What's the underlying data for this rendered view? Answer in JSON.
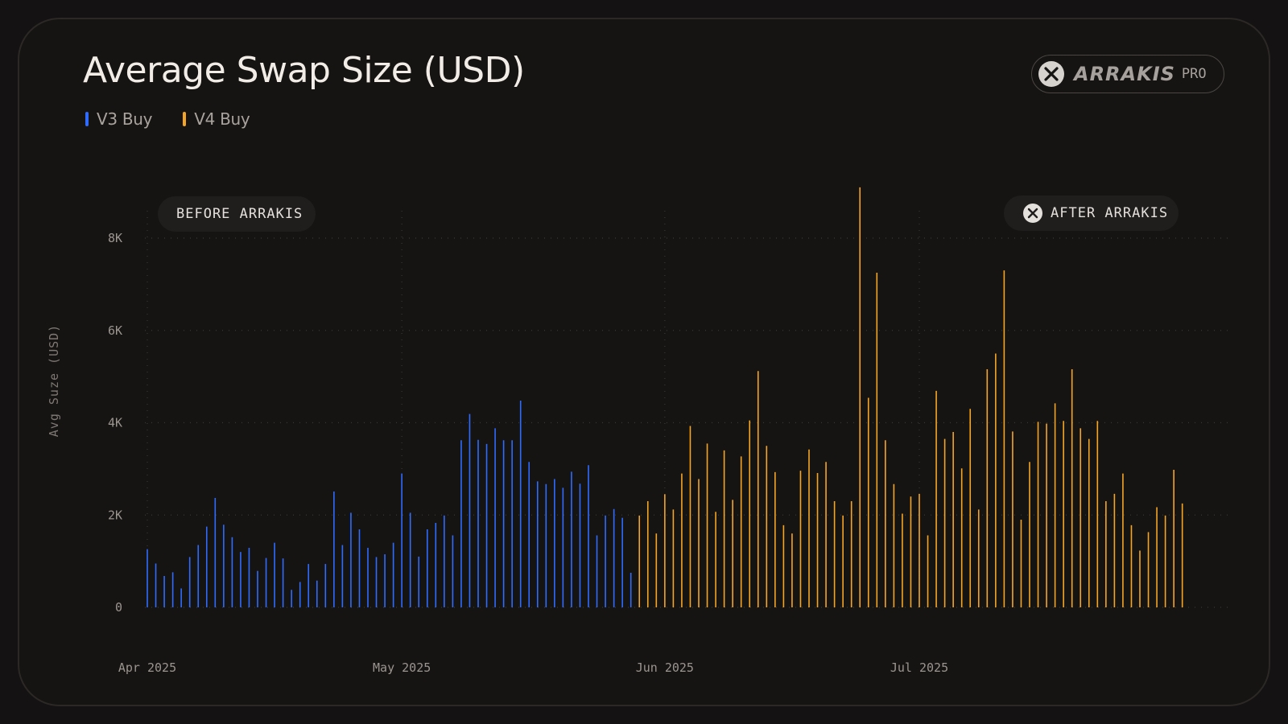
{
  "title": "Average Swap Size (USD)",
  "brand": {
    "wordmark": "ARRAKIS",
    "suffix": "PRO",
    "icon": "arrakis-logo-icon"
  },
  "legend": [
    {
      "label": "V3 Buy",
      "color": "#2f6bff"
    },
    {
      "label": "V4 Buy",
      "color": "#f5a524"
    }
  ],
  "annotations": {
    "before": "BEFORE ARRAKIS",
    "after": "AFTER ARRAKIS"
  },
  "colors": {
    "background": "#141212",
    "card": "#161413",
    "v3": "#2f6bff",
    "v4": "#f5a524",
    "grid": "#3a3633"
  },
  "chart_data": {
    "type": "bar",
    "title": "Average Swap Size (USD)",
    "xlabel": "",
    "ylabel": "Avg Suze (USD)",
    "ylim": [
      0,
      8800
    ],
    "yticks": [
      0,
      2000,
      4000,
      6000,
      8000
    ],
    "ytick_labels": [
      "0",
      "2K",
      "4K",
      "6K",
      "8K"
    ],
    "xticks": [
      "2025-04-01",
      "2025-05-01",
      "2025-06-01",
      "2025-07-01"
    ],
    "xtick_labels": [
      "Apr 2025",
      "May 2025",
      "Jun 2025",
      "Jul 2025"
    ],
    "grid": true,
    "legend_position": "top-left",
    "series": [
      {
        "name": "V3 Buy",
        "color": "#2f6bff",
        "points": [
          [
            "2025-04-01",
            1260
          ],
          [
            "2025-04-02",
            950
          ],
          [
            "2025-04-03",
            680
          ],
          [
            "2025-04-04",
            760
          ],
          [
            "2025-04-05",
            410
          ],
          [
            "2025-04-06",
            1090
          ],
          [
            "2025-04-07",
            1350
          ],
          [
            "2025-04-08",
            1750
          ],
          [
            "2025-04-09",
            2370
          ],
          [
            "2025-04-10",
            1790
          ],
          [
            "2025-04-11",
            1520
          ],
          [
            "2025-04-12",
            1200
          ],
          [
            "2025-04-13",
            1290
          ],
          [
            "2025-04-14",
            790
          ],
          [
            "2025-04-15",
            1070
          ],
          [
            "2025-04-16",
            1400
          ],
          [
            "2025-04-17",
            1060
          ],
          [
            "2025-04-18",
            380
          ],
          [
            "2025-04-19",
            550
          ],
          [
            "2025-04-20",
            940
          ],
          [
            "2025-04-21",
            580
          ],
          [
            "2025-04-22",
            940
          ],
          [
            "2025-04-23",
            2510
          ],
          [
            "2025-04-24",
            1350
          ],
          [
            "2025-04-25",
            2050
          ],
          [
            "2025-04-26",
            1690
          ],
          [
            "2025-04-27",
            1290
          ],
          [
            "2025-04-28",
            1090
          ],
          [
            "2025-04-29",
            1150
          ],
          [
            "2025-04-30",
            1400
          ],
          [
            "2025-05-01",
            2900
          ],
          [
            "2025-05-02",
            2050
          ],
          [
            "2025-05-03",
            1100
          ],
          [
            "2025-05-04",
            1690
          ],
          [
            "2025-05-05",
            1830
          ],
          [
            "2025-05-06",
            1990
          ],
          [
            "2025-05-07",
            1560
          ],
          [
            "2025-05-08",
            3620
          ],
          [
            "2025-05-09",
            4190
          ],
          [
            "2025-05-10",
            3630
          ],
          [
            "2025-05-11",
            3540
          ],
          [
            "2025-05-12",
            3880
          ],
          [
            "2025-05-13",
            3620
          ],
          [
            "2025-05-14",
            3620
          ],
          [
            "2025-05-15",
            4480
          ],
          [
            "2025-05-16",
            3150
          ],
          [
            "2025-05-17",
            2730
          ],
          [
            "2025-05-18",
            2670
          ],
          [
            "2025-05-19",
            2780
          ],
          [
            "2025-05-20",
            2590
          ],
          [
            "2025-05-21",
            2940
          ],
          [
            "2025-05-22",
            2680
          ],
          [
            "2025-05-23",
            3080
          ],
          [
            "2025-05-24",
            1560
          ],
          [
            "2025-05-25",
            1990
          ],
          [
            "2025-05-26",
            2130
          ],
          [
            "2025-05-27",
            1940
          ],
          [
            "2025-05-28",
            750
          ]
        ]
      },
      {
        "name": "V4 Buy",
        "color": "#f5a524",
        "points": [
          [
            "2025-05-29",
            1990
          ],
          [
            "2025-05-30",
            2300
          ],
          [
            "2025-05-31",
            1600
          ],
          [
            "2025-06-01",
            2450
          ],
          [
            "2025-06-02",
            2120
          ],
          [
            "2025-06-03",
            2900
          ],
          [
            "2025-06-04",
            3930
          ],
          [
            "2025-06-05",
            2780
          ],
          [
            "2025-06-06",
            3550
          ],
          [
            "2025-06-07",
            2070
          ],
          [
            "2025-06-08",
            3400
          ],
          [
            "2025-06-09",
            2330
          ],
          [
            "2025-06-10",
            3270
          ],
          [
            "2025-06-11",
            4050
          ],
          [
            "2025-06-12",
            5120
          ],
          [
            "2025-06-13",
            3500
          ],
          [
            "2025-06-14",
            2930
          ],
          [
            "2025-06-15",
            1780
          ],
          [
            "2025-06-16",
            1600
          ],
          [
            "2025-06-17",
            2960
          ],
          [
            "2025-06-18",
            3420
          ],
          [
            "2025-06-19",
            2910
          ],
          [
            "2025-06-20",
            3150
          ],
          [
            "2025-06-21",
            2300
          ],
          [
            "2025-06-22",
            1990
          ],
          [
            "2025-06-23",
            2300
          ],
          [
            "2025-06-24",
            9100
          ],
          [
            "2025-06-25",
            4540
          ],
          [
            "2025-06-26",
            7250
          ],
          [
            "2025-06-27",
            3620
          ],
          [
            "2025-06-28",
            2670
          ],
          [
            "2025-06-29",
            2030
          ],
          [
            "2025-06-30",
            2400
          ],
          [
            "2025-07-01",
            2460
          ],
          [
            "2025-07-02",
            1560
          ],
          [
            "2025-07-03",
            4690
          ],
          [
            "2025-07-04",
            3650
          ],
          [
            "2025-07-05",
            3800
          ],
          [
            "2025-07-06",
            3010
          ],
          [
            "2025-07-07",
            4300
          ],
          [
            "2025-07-08",
            2120
          ],
          [
            "2025-07-09",
            5160
          ],
          [
            "2025-07-10",
            5500
          ],
          [
            "2025-07-11",
            7300
          ],
          [
            "2025-07-12",
            3810
          ],
          [
            "2025-07-13",
            1900
          ],
          [
            "2025-07-14",
            3150
          ],
          [
            "2025-07-15",
            4020
          ],
          [
            "2025-07-16",
            3980
          ],
          [
            "2025-07-17",
            4420
          ],
          [
            "2025-07-18",
            4040
          ],
          [
            "2025-07-19",
            5160
          ],
          [
            "2025-07-20",
            3880
          ],
          [
            "2025-07-21",
            3650
          ],
          [
            "2025-07-22",
            4040
          ],
          [
            "2025-07-23",
            2300
          ],
          [
            "2025-07-24",
            2460
          ],
          [
            "2025-07-25",
            2900
          ],
          [
            "2025-07-26",
            1780
          ],
          [
            "2025-07-27",
            1230
          ],
          [
            "2025-07-28",
            1630
          ],
          [
            "2025-07-29",
            2170
          ],
          [
            "2025-07-30",
            1990
          ],
          [
            "2025-07-31",
            2980
          ],
          [
            "2025-08-01",
            2250
          ]
        ]
      }
    ]
  }
}
